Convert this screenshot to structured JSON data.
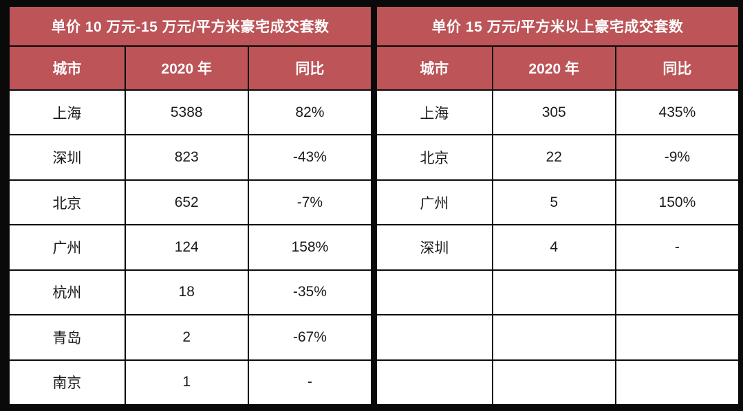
{
  "colors": {
    "header_bg": "#BC5458",
    "border": "#0A0A0A",
    "header_text": "#FFFFFF",
    "body_text": "#1A1A1A",
    "cell_bg": "#FFFFFF"
  },
  "chart_data": [
    {
      "type": "table",
      "title": "单价 10 万元-15 万元/平方米豪宅成交套数",
      "columns": [
        "城市",
        "2020 年",
        "同比"
      ],
      "rows": [
        [
          "上海",
          "5388",
          "82%"
        ],
        [
          "深圳",
          "823",
          "-43%"
        ],
        [
          "北京",
          "652",
          "-7%"
        ],
        [
          "广州",
          "124",
          "158%"
        ],
        [
          "杭州",
          "18",
          "-35%"
        ],
        [
          "青岛",
          "2",
          "-67%"
        ],
        [
          "南京",
          "1",
          "-"
        ]
      ]
    },
    {
      "type": "table",
      "title": "单价 15 万元/平方米以上豪宅成交套数",
      "columns": [
        "城市",
        "2020 年",
        "同比"
      ],
      "rows": [
        [
          "上海",
          "305",
          "435%"
        ],
        [
          "北京",
          "22",
          "-9%"
        ],
        [
          "广州",
          "5",
          "150%"
        ],
        [
          "深圳",
          "4",
          "-"
        ],
        [
          "",
          "",
          ""
        ],
        [
          "",
          "",
          ""
        ],
        [
          "",
          "",
          ""
        ]
      ]
    }
  ]
}
